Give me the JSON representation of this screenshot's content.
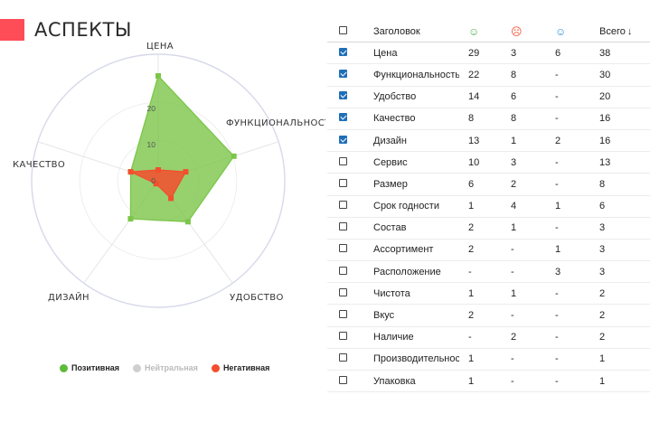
{
  "page": {
    "title": "АСПЕКТЫ"
  },
  "radar": {
    "axes": [
      "ЦЕНА",
      "ФУНКЦИОНАЛЬНОСТЬ",
      "УДОБСТВО",
      "ДИЗАЙН",
      "КАЧЕСТВО"
    ],
    "ticks": [
      "0",
      "10",
      "20"
    ],
    "positive": [
      29,
      22,
      14,
      13,
      8
    ],
    "negative": [
      3,
      8,
      6,
      1,
      8
    ],
    "max": 35,
    "colors": {
      "positive": "#7cc64a",
      "negative": "#f44e2e",
      "neutral": "#cfcfcf"
    }
  },
  "legend": {
    "items": [
      {
        "label": "Позитивная",
        "color": "#5dbb3a"
      },
      {
        "label": "Нейтральная",
        "color": "#cfcfcf"
      },
      {
        "label": "Негативная",
        "color": "#f44e2e"
      }
    ]
  },
  "table": {
    "header": {
      "title": "Заголовок",
      "pos_icon": "☺",
      "neg_icon": "☹",
      "neu_icon": "☺",
      "total": "Всего",
      "sort_icon": "↓",
      "pos_color": "#4caf50",
      "neg_color": "#f44e2e",
      "neu_color": "#2b8fd6"
    },
    "rows": [
      {
        "checked": true,
        "title": "Цена",
        "pos": "29",
        "neg": "3",
        "neu": "6",
        "total": "38"
      },
      {
        "checked": true,
        "title": "Функциональность",
        "pos": "22",
        "neg": "8",
        "neu": "-",
        "total": "30"
      },
      {
        "checked": true,
        "title": "Удобство",
        "pos": "14",
        "neg": "6",
        "neu": "-",
        "total": "20"
      },
      {
        "checked": true,
        "title": "Качество",
        "pos": "8",
        "neg": "8",
        "neu": "-",
        "total": "16"
      },
      {
        "checked": true,
        "title": "Дизайн",
        "pos": "13",
        "neg": "1",
        "neu": "2",
        "total": "16"
      },
      {
        "checked": false,
        "title": "Сервис",
        "pos": "10",
        "neg": "3",
        "neu": "-",
        "total": "13"
      },
      {
        "checked": false,
        "title": "Размер",
        "pos": "6",
        "neg": "2",
        "neu": "-",
        "total": "8"
      },
      {
        "checked": false,
        "title": "Срок годности",
        "pos": "1",
        "neg": "4",
        "neu": "1",
        "total": "6"
      },
      {
        "checked": false,
        "title": "Состав",
        "pos": "2",
        "neg": "1",
        "neu": "-",
        "total": "3"
      },
      {
        "checked": false,
        "title": "Ассортимент",
        "pos": "2",
        "neg": "-",
        "neu": "1",
        "total": "3"
      },
      {
        "checked": false,
        "title": "Расположение",
        "pos": "-",
        "neg": "-",
        "neu": "3",
        "total": "3"
      },
      {
        "checked": false,
        "title": "Чистота",
        "pos": "1",
        "neg": "1",
        "neu": "-",
        "total": "2"
      },
      {
        "checked": false,
        "title": "Вкус",
        "pos": "2",
        "neg": "-",
        "neu": "-",
        "total": "2"
      },
      {
        "checked": false,
        "title": "Наличие",
        "pos": "-",
        "neg": "2",
        "neu": "-",
        "total": "2"
      },
      {
        "checked": false,
        "title": "Производительность",
        "pos": "1",
        "neg": "-",
        "neu": "-",
        "total": "1"
      },
      {
        "checked": false,
        "title": "Упаковка",
        "pos": "1",
        "neg": "-",
        "neu": "-",
        "total": "1"
      }
    ]
  }
}
